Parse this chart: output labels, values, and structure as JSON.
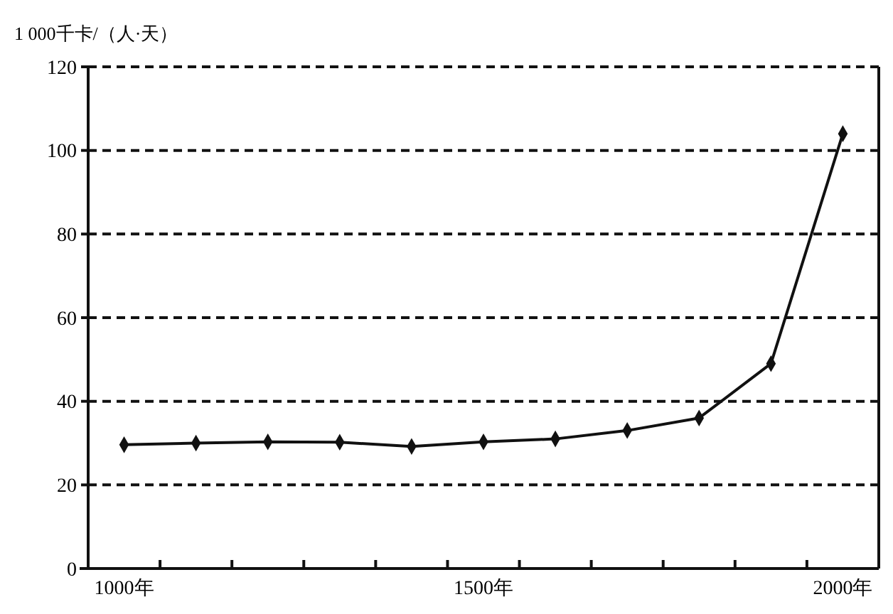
{
  "chart_data": {
    "type": "line",
    "ylabel": "1 000千卡/（人·天）",
    "categories": [
      "1000年",
      null,
      null,
      null,
      null,
      "1500年",
      null,
      null,
      null,
      null,
      "2000年"
    ],
    "values": [
      29.6,
      30,
      30.3,
      30.2,
      29.2,
      30.3,
      31,
      33,
      36,
      49,
      104
    ],
    "color": "#111111",
    "marker": "diamond",
    "line_style": "solid",
    "ylim": [
      0,
      120
    ],
    "yticks": [
      0,
      20,
      40,
      60,
      80,
      100,
      120
    ],
    "grid": "y"
  }
}
